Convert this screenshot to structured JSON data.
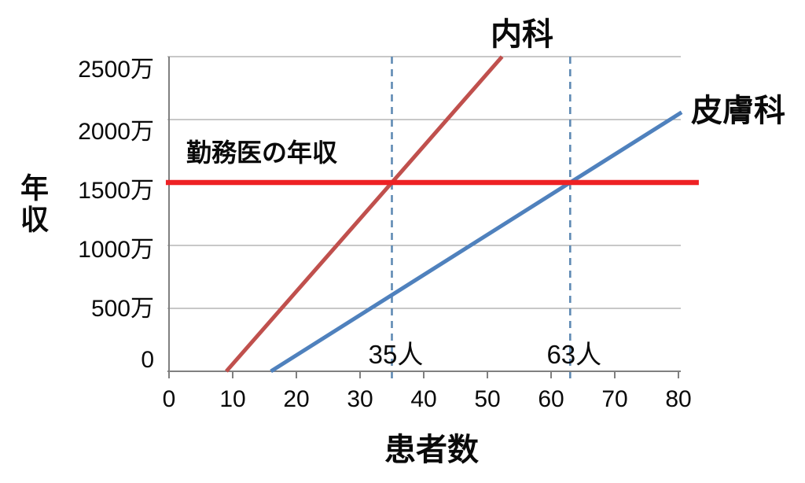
{
  "chart_data": {
    "type": "line",
    "title": "",
    "xlabel": "患者数",
    "ylabel": "年収",
    "x_ticks": [
      "0",
      "10",
      "20",
      "30",
      "40",
      "50",
      "60",
      "70",
      "80"
    ],
    "y_ticks": [
      "0",
      "500万",
      "1000万",
      "1500万",
      "2000万",
      "2500万"
    ],
    "y_tick_values_man": [
      0,
      500,
      1000,
      1500,
      2000,
      2500
    ],
    "xlim": [
      0,
      80
    ],
    "ylim_man": [
      0,
      2500
    ],
    "grid": "horizontal gridlines every 500万",
    "legend_position": "inline labels at line ends",
    "axis_color": "#808080",
    "grid_color": "#a6a6a6",
    "series": [
      {
        "name": "内科",
        "color": "#C0504D",
        "unit_y": "万円",
        "points_x": [
          9,
          35,
          52.3
        ],
        "points_y": [
          0,
          1500,
          2500
        ]
      },
      {
        "name": "皮膚科",
        "color": "#4F81BD",
        "unit_y": "万円",
        "points_x": [
          16,
          63,
          80.5
        ],
        "points_y": [
          0,
          1500,
          2058
        ]
      },
      {
        "name": "勤務医の年収",
        "color": "#EE2124",
        "unit_y": "万円",
        "points_x": [
          -0.5,
          83.2
        ],
        "points_y": [
          1500,
          1500
        ]
      }
    ],
    "guides": [
      {
        "label": "35人",
        "x": 35,
        "color": "#5F8AB4",
        "style": "dashed"
      },
      {
        "label": "63人",
        "x": 63,
        "color": "#5F8AB4",
        "style": "dashed"
      }
    ]
  }
}
